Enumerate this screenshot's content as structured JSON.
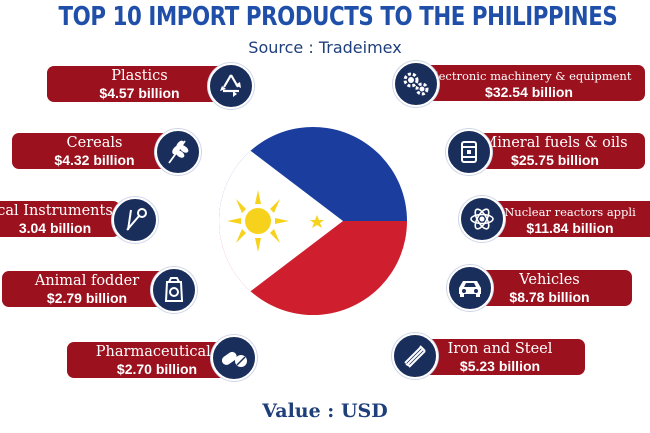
{
  "title": "TOP 10 IMPORT PRODUCTS TO THE PHILIPPINES",
  "source": "Source : Tradeimex",
  "footer": "Value : USD",
  "colors": {
    "title": "#1f4fa8",
    "box": "#9b111e",
    "icon_bg": "#1a2e5c",
    "flag_blue": "#1a3d9e",
    "flag_red": "#cf1f2e",
    "flag_yellow": "#f7d21c"
  },
  "left_items": [
    {
      "name": "Plastics",
      "value": "$4.57 billion",
      "icon": "recycle-icon"
    },
    {
      "name": "Cereals",
      "value": "$4.32 billion",
      "icon": "wheat-icon"
    },
    {
      "name": "cal Instruments",
      "value": "3.04 billion",
      "icon": "scissors-icon"
    },
    {
      "name": "Animal fodder",
      "value": "$2.79 billion",
      "icon": "feed-bag-icon"
    },
    {
      "name": "Pharmaceuticals",
      "value": "$2.70 billion",
      "icon": "pills-icon"
    }
  ],
  "right_items": [
    {
      "name": "Electronic machinery & equipment",
      "value": "$32.54 billion",
      "icon": "gears-icon"
    },
    {
      "name": "Mineral fuels & oils",
      "value": "$25.75 billion",
      "icon": "barrel-icon"
    },
    {
      "name": "Nuclear reactors appli",
      "value": "$11.84 billion",
      "icon": "atom-icon"
    },
    {
      "name": "Vehicles",
      "value": "$8.78 billion",
      "icon": "car-icon"
    },
    {
      "name": "Iron and Steel",
      "value": "$5.23 billion",
      "icon": "steel-beam-icon"
    }
  ]
}
